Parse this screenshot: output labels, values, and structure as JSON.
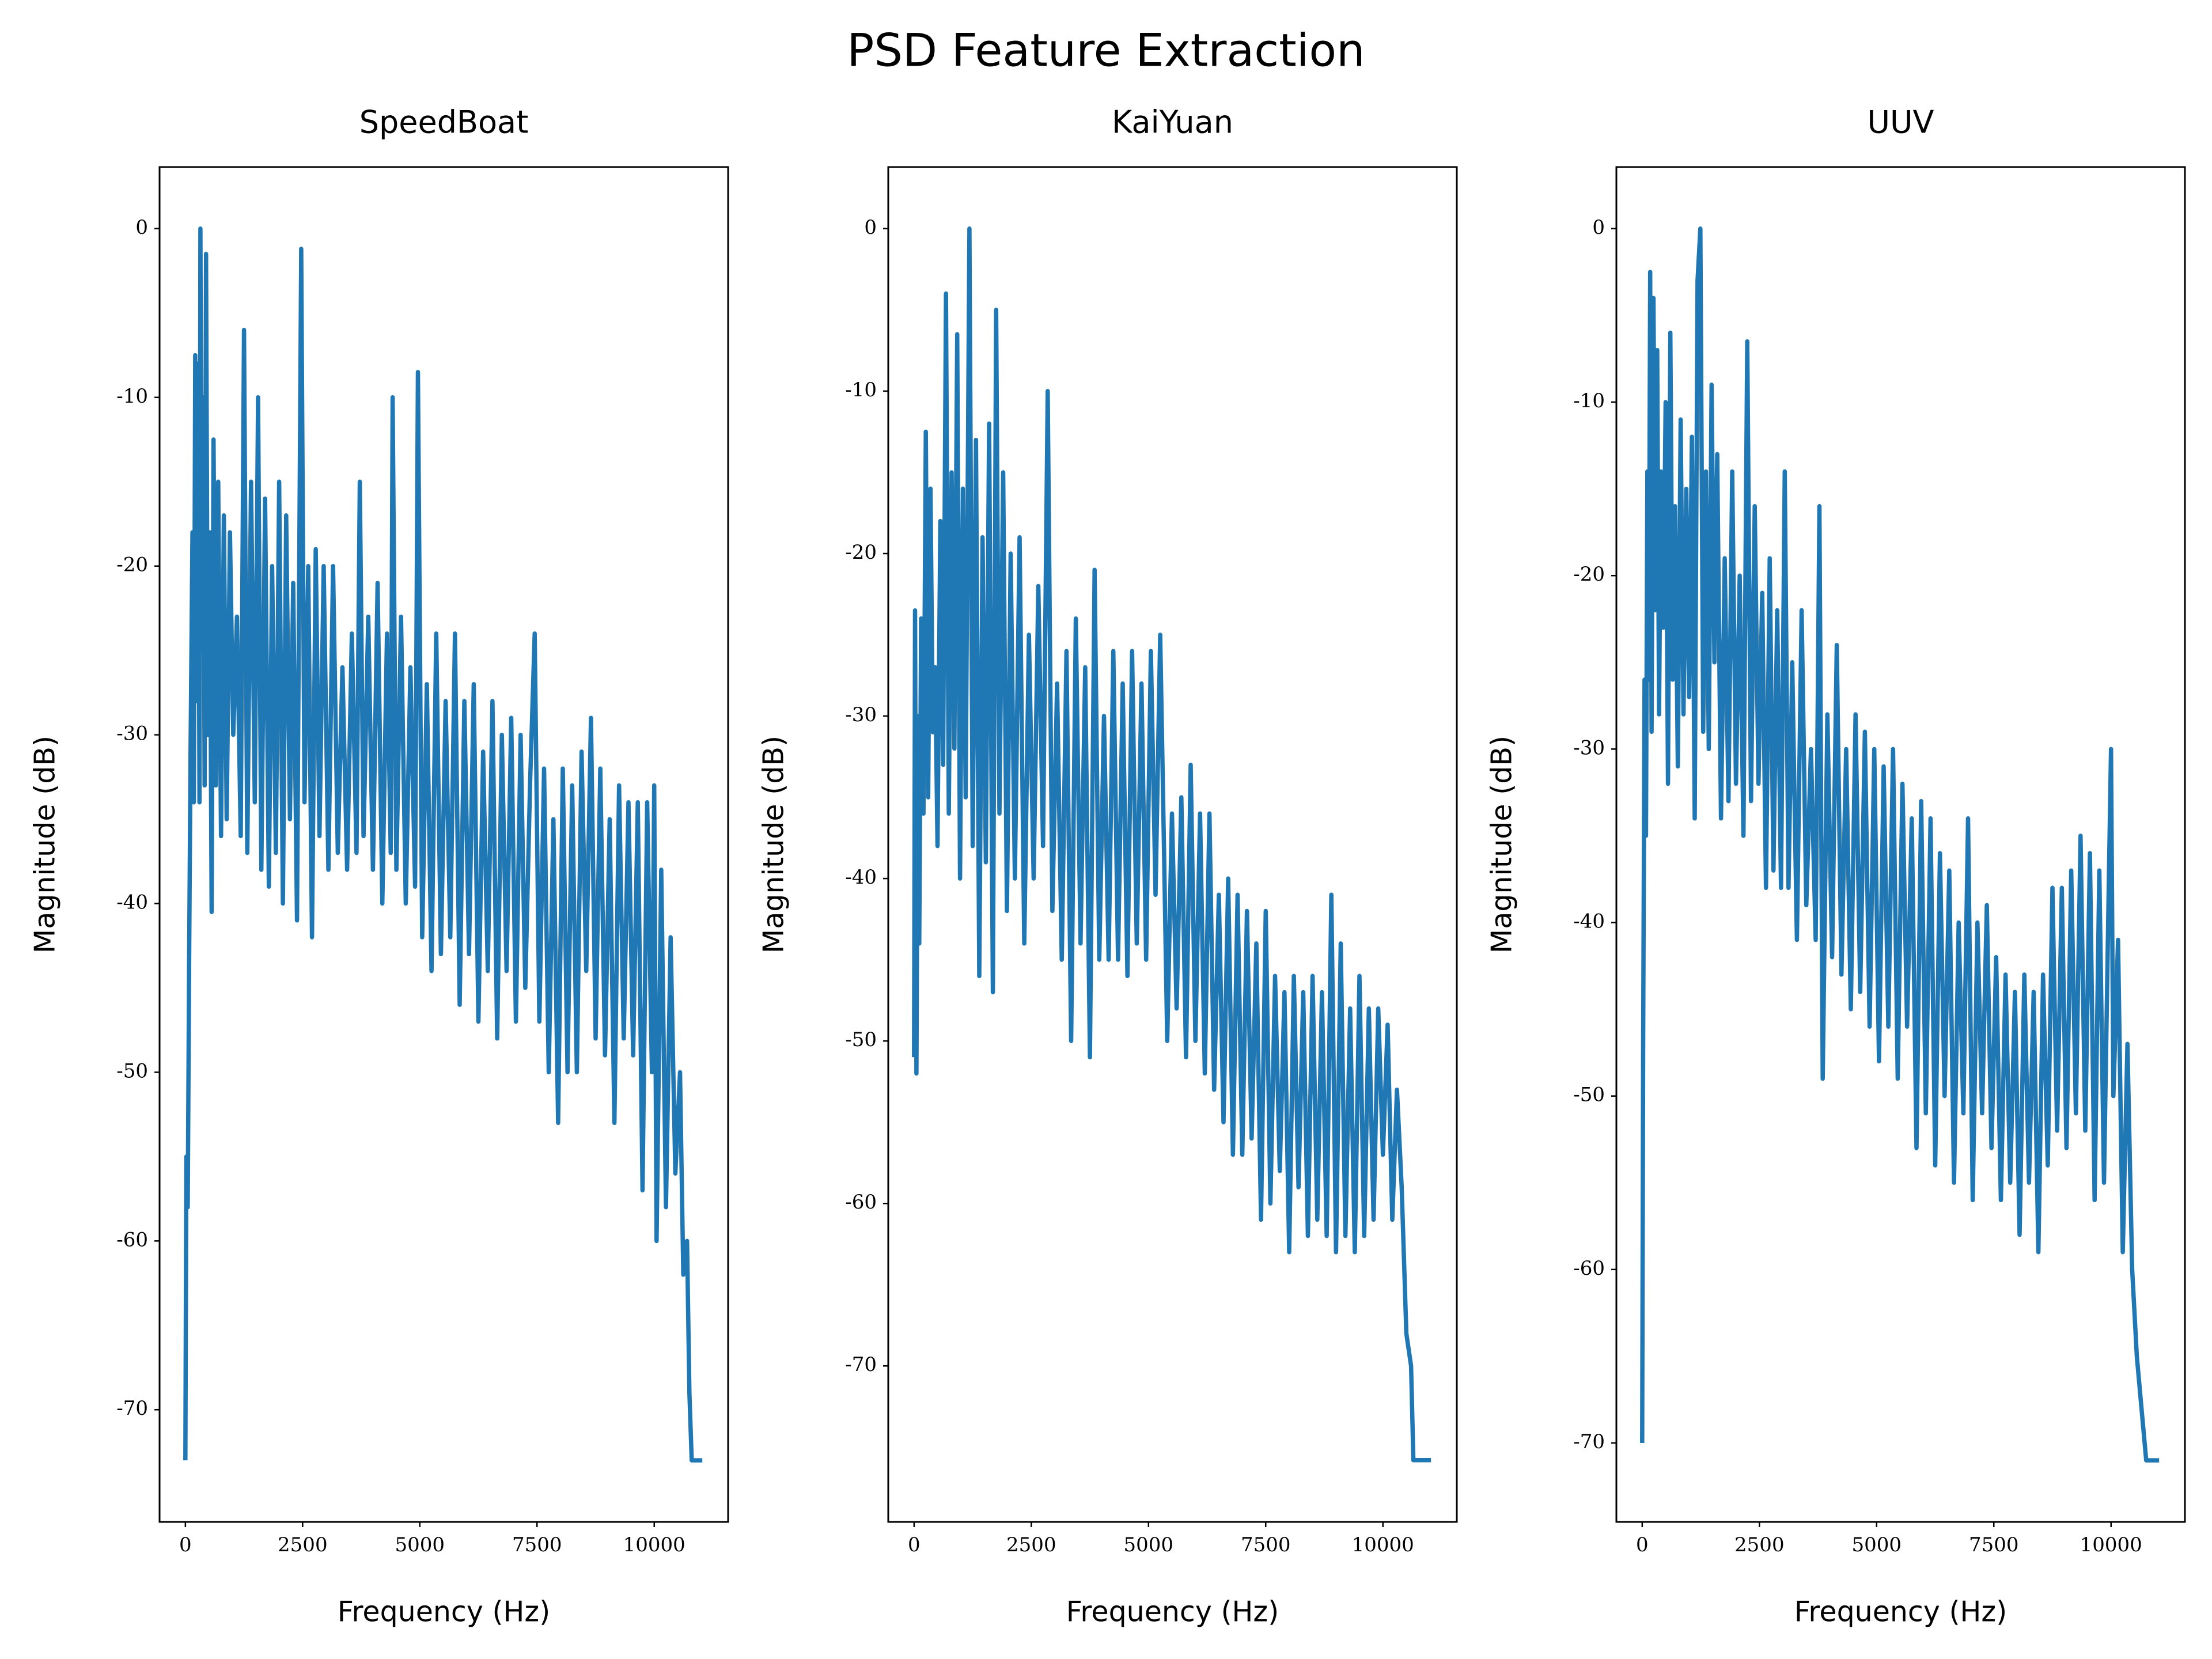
{
  "title": "PSD Feature Extraction",
  "chart_data": [
    {
      "type": "line",
      "title": "SpeedBoat",
      "x_label": "Frequency (Hz)",
      "y_label": "Magnitude (dB)",
      "color": "#1f77b4",
      "xlim": [
        -551,
        11576
      ],
      "ylim": [
        -76.65,
        3.65
      ],
      "xticks": [
        0,
        2500,
        5000,
        7500,
        10000
      ],
      "yticks": [
        0,
        -10,
        -20,
        -30,
        -40,
        -50,
        -60,
        -70
      ],
      "x": [
        0,
        20,
        50,
        80,
        110,
        150,
        180,
        210,
        240,
        270,
        300,
        320,
        350,
        380,
        410,
        440,
        480,
        520,
        560,
        600,
        650,
        700,
        760,
        820,
        880,
        950,
        1020,
        1100,
        1180,
        1250,
        1320,
        1400,
        1480,
        1550,
        1620,
        1700,
        1780,
        1850,
        1930,
        2000,
        2080,
        2150,
        2230,
        2300,
        2380,
        2470,
        2540,
        2620,
        2700,
        2780,
        2860,
        2950,
        3050,
        3150,
        3250,
        3350,
        3450,
        3550,
        3650,
        3720,
        3800,
        3900,
        4000,
        4100,
        4200,
        4300,
        4380,
        4420,
        4500,
        4600,
        4700,
        4800,
        4900,
        4960,
        5050,
        5150,
        5250,
        5350,
        5450,
        5550,
        5650,
        5750,
        5850,
        5950,
        6050,
        6150,
        6250,
        6350,
        6450,
        6550,
        6650,
        6750,
        6850,
        6950,
        7050,
        7150,
        7250,
        7350,
        7450,
        7550,
        7650,
        7750,
        7850,
        7950,
        8050,
        8150,
        8250,
        8350,
        8450,
        8550,
        8650,
        8750,
        8850,
        8950,
        9050,
        9150,
        9250,
        9350,
        9450,
        9550,
        9650,
        9750,
        9850,
        9950,
        10000,
        10050,
        10150,
        10250,
        10350,
        10450,
        10550,
        10620,
        10700,
        10750,
        10800,
        11025
      ],
      "values": [
        -73,
        -55,
        -58,
        -43,
        -31,
        -18,
        -34,
        -7.5,
        -28,
        -8,
        -34,
        0,
        -25,
        -10,
        -33,
        -1.5,
        -30,
        -18,
        -40.5,
        -12.5,
        -33,
        -15,
        -36,
        -17,
        -35,
        -18,
        -30,
        -23,
        -36,
        -6,
        -37,
        -15,
        -34,
        -10,
        -38,
        -16,
        -39,
        -20,
        -37,
        -15,
        -40,
        -17,
        -35,
        -21,
        -41,
        -1.2,
        -34,
        -20,
        -42,
        -19,
        -36,
        -20,
        -38,
        -20,
        -37,
        -26,
        -38,
        -24,
        -37,
        -15,
        -36,
        -23,
        -38,
        -21,
        -40,
        -24,
        -37,
        -10,
        -38,
        -23,
        -40,
        -26,
        -39,
        -8.5,
        -42,
        -27,
        -44,
        -24,
        -43,
        -28,
        -42,
        -24,
        -46,
        -28,
        -43,
        -27,
        -47,
        -31,
        -44,
        -28,
        -48,
        -30,
        -44,
        -29,
        -47,
        -30,
        -45,
        -33,
        -24,
        -47,
        -32,
        -50,
        -35,
        -53,
        -32,
        -50,
        -33,
        -50,
        -31,
        -44,
        -29,
        -48,
        -32,
        -49,
        -35,
        -53,
        -33,
        -48,
        -34,
        -49,
        -34,
        -57,
        -34,
        -50,
        -33,
        -60,
        -38,
        -58,
        -42,
        -56,
        -50,
        -62,
        -60,
        -69,
        -73,
        -73
      ]
    },
    {
      "type": "line",
      "title": "KaiYuan",
      "x_label": "Frequency (Hz)",
      "y_label": "Magnitude (dB)",
      "color": "#1f77b4",
      "xlim": [
        -551,
        11576
      ],
      "ylim": [
        -79.6,
        3.79
      ],
      "xticks": [
        0,
        2500,
        5000,
        7500,
        10000
      ],
      "yticks": [
        0,
        -10,
        -20,
        -30,
        -40,
        -50,
        -60,
        -70
      ],
      "x": [
        0,
        20,
        50,
        80,
        110,
        150,
        200,
        250,
        300,
        350,
        400,
        450,
        500,
        560,
        620,
        680,
        740,
        800,
        860,
        920,
        980,
        1040,
        1100,
        1180,
        1250,
        1320,
        1390,
        1460,
        1530,
        1600,
        1680,
        1750,
        1820,
        1900,
        1980,
        2060,
        2150,
        2250,
        2350,
        2450,
        2550,
        2650,
        2750,
        2850,
        2950,
        3050,
        3150,
        3250,
        3350,
        3450,
        3550,
        3650,
        3750,
        3850,
        3950,
        4050,
        4150,
        4250,
        4350,
        4450,
        4550,
        4650,
        4750,
        4850,
        4950,
        5050,
        5150,
        5250,
        5330,
        5400,
        5500,
        5600,
        5700,
        5800,
        5900,
        6000,
        6100,
        6200,
        6300,
        6400,
        6500,
        6600,
        6700,
        6800,
        6900,
        7000,
        7100,
        7200,
        7300,
        7400,
        7500,
        7600,
        7700,
        7800,
        7900,
        8000,
        8100,
        8200,
        8300,
        8400,
        8500,
        8600,
        8700,
        8800,
        8900,
        9000,
        9100,
        9200,
        9300,
        9400,
        9500,
        9600,
        9700,
        9800,
        9900,
        10000,
        10100,
        10200,
        10300,
        10400,
        10500,
        10600,
        10650,
        11025
      ],
      "values": [
        -51,
        -23.5,
        -52,
        -30,
        -44,
        -24,
        -36,
        -12.5,
        -35,
        -16,
        -31,
        -27,
        -38,
        -18,
        -33,
        -4,
        -36,
        -15,
        -32,
        -6.5,
        -40,
        -16,
        -35,
        0,
        -38,
        -13,
        -46,
        -19,
        -39,
        -12,
        -47,
        -5,
        -36,
        -15,
        -42,
        -20,
        -40,
        -19,
        -44,
        -25,
        -40,
        -22,
        -38,
        -10,
        -42,
        -28,
        -45,
        -26,
        -50,
        -24,
        -44,
        -27,
        -51,
        -21,
        -45,
        -30,
        -45,
        -26,
        -45,
        -28,
        -46,
        -26,
        -44,
        -28,
        -45,
        -26,
        -41,
        -25,
        -38,
        -50,
        -36,
        -48,
        -35,
        -51,
        -33,
        -50,
        -36,
        -52,
        -36,
        -53,
        -41,
        -55,
        -40,
        -57,
        -41,
        -57,
        -42,
        -56,
        -44,
        -61,
        -42,
        -60,
        -46,
        -58,
        -47,
        -63,
        -46,
        -59,
        -47,
        -62,
        -46,
        -61,
        -47,
        -62,
        -41,
        -63,
        -44,
        -62,
        -48,
        -63,
        -46,
        -62,
        -48,
        -61,
        -48,
        -57,
        -49,
        -61,
        -53,
        -59,
        -68,
        -70,
        -75.8,
        -75.8
      ]
    },
    {
      "type": "line",
      "title": "UUV",
      "x_label": "Frequency (Hz)",
      "y_label": "Magnitude (dB)",
      "color": "#1f77b4",
      "xlim": [
        -551,
        11576
      ],
      "ylim": [
        -74.55,
        3.55
      ],
      "xticks": [
        0,
        2500,
        5000,
        7500,
        10000
      ],
      "yticks": [
        0,
        -10,
        -20,
        -30,
        -40,
        -50,
        -60,
        -70
      ],
      "x": [
        0,
        20,
        50,
        80,
        110,
        140,
        170,
        200,
        240,
        280,
        320,
        360,
        400,
        450,
        500,
        550,
        600,
        650,
        700,
        760,
        820,
        880,
        940,
        1000,
        1060,
        1120,
        1180,
        1240,
        1300,
        1360,
        1420,
        1480,
        1540,
        1600,
        1680,
        1760,
        1840,
        1920,
        2000,
        2080,
        2160,
        2240,
        2320,
        2400,
        2480,
        2560,
        2640,
        2720,
        2800,
        2880,
        2960,
        3040,
        3120,
        3200,
        3300,
        3400,
        3500,
        3600,
        3700,
        3780,
        3850,
        3950,
        4050,
        4150,
        4250,
        4350,
        4450,
        4550,
        4650,
        4750,
        4850,
        4950,
        5050,
        5150,
        5250,
        5350,
        5450,
        5550,
        5650,
        5750,
        5850,
        5950,
        6050,
        6150,
        6250,
        6350,
        6450,
        6550,
        6650,
        6750,
        6850,
        6950,
        7050,
        7150,
        7250,
        7350,
        7450,
        7550,
        7650,
        7750,
        7850,
        7950,
        8050,
        8150,
        8250,
        8350,
        8450,
        8550,
        8650,
        8750,
        8850,
        8950,
        9050,
        9150,
        9250,
        9350,
        9450,
        9550,
        9650,
        9750,
        9850,
        9950,
        10000,
        10050,
        10150,
        10250,
        10350,
        10450,
        10550,
        10650,
        10750,
        11025
      ],
      "values": [
        -70,
        -47,
        -26,
        -35,
        -14,
        -26,
        -2.5,
        -29,
        -4,
        -22,
        -7,
        -28,
        -14,
        -23,
        -10,
        -32,
        -6,
        -26,
        -16,
        -31,
        -11,
        -28,
        -15,
        -27,
        -12,
        -34,
        -3,
        0,
        -29,
        -14,
        -30,
        -9,
        -25,
        -13,
        -34,
        -19,
        -33,
        -14,
        -32,
        -20,
        -35,
        -6.5,
        -33,
        -16,
        -32,
        -21,
        -38,
        -19,
        -37,
        -22,
        -38,
        -14,
        -38,
        -25,
        -41,
        -22,
        -39,
        -30,
        -41,
        -16,
        -49,
        -28,
        -42,
        -24,
        -43,
        -30,
        -45,
        -28,
        -44,
        -29,
        -46,
        -30,
        -48,
        -31,
        -46,
        -30,
        -49,
        -32,
        -46,
        -34,
        -53,
        -33,
        -51,
        -34,
        -54,
        -36,
        -50,
        -37,
        -55,
        -40,
        -51,
        -34,
        -56,
        -40,
        -51,
        -39,
        -53,
        -42,
        -56,
        -43,
        -55,
        -44,
        -58,
        -43,
        -55,
        -44,
        -59,
        -43,
        -54,
        -38,
        -52,
        -38,
        -53,
        -37,
        -51,
        -35,
        -52,
        -36,
        -56,
        -37,
        -55,
        -38,
        -30,
        -50,
        -41,
        -59,
        -47,
        -60,
        -65,
        -68,
        -71,
        -71
      ]
    }
  ]
}
